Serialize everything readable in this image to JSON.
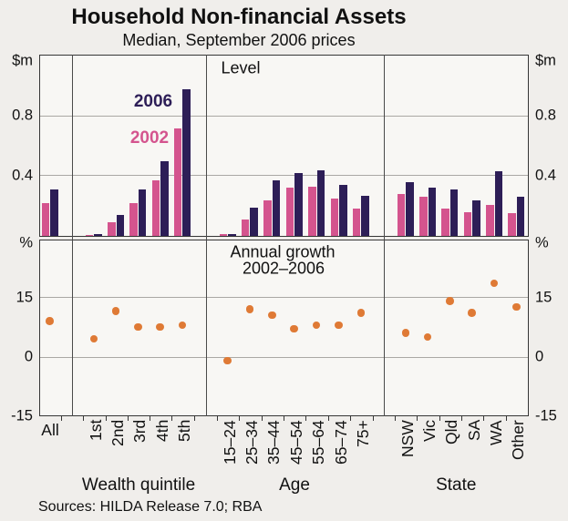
{
  "page": {
    "title": "Household Non-financial Assets",
    "subtitle": "Median, September 2006 prices",
    "footer": "Sources: HILDA Release 7.0; RBA"
  },
  "colors": {
    "bar_2006": "#2d1e57",
    "bar_2002": "#d4548e",
    "growth_dot": "#df7a35",
    "panel_background": "#f8f7f4",
    "gridline": "#aaa8a4"
  },
  "chart_data": [
    {
      "type": "bar",
      "panel_label": "Level",
      "unit_left": "$m",
      "unit_right": "$m",
      "ylim": [
        0,
        1.2
      ],
      "yticks": [
        {
          "v": 0.8,
          "label": "0.8",
          "grid": true
        },
        {
          "v": 0.4,
          "label": "0.4",
          "grid": true
        }
      ],
      "legend": [
        {
          "name": "2006",
          "color": "#2d1e57"
        },
        {
          "name": "2002",
          "color": "#d4548e"
        }
      ],
      "sections": [
        {
          "label": "",
          "categories": [
            "All"
          ]
        },
        {
          "label": "Wealth quintile",
          "categories": [
            "1st",
            "2nd",
            "3rd",
            "4th",
            "5th"
          ]
        },
        {
          "label": "Age",
          "categories": [
            "15–24",
            "25–34",
            "35–44",
            "45–54",
            "55–64",
            "65–74",
            "75+"
          ]
        },
        {
          "label": "State",
          "categories": [
            "NSW",
            "Vic",
            "Qld",
            "SA",
            "WA",
            "Other"
          ]
        }
      ],
      "series": [
        {
          "name": "2002",
          "values": [
            0.22,
            0.005,
            0.09,
            0.22,
            0.37,
            0.72,
            0.01,
            0.11,
            0.24,
            0.32,
            0.33,
            0.25,
            0.18,
            0.28,
            0.26,
            0.18,
            0.16,
            0.21,
            0.15
          ]
        },
        {
          "name": "2006",
          "values": [
            0.31,
            0.01,
            0.14,
            0.31,
            0.5,
            0.98,
            0.01,
            0.19,
            0.37,
            0.42,
            0.44,
            0.34,
            0.27,
            0.36,
            0.32,
            0.31,
            0.24,
            0.43,
            0.26
          ]
        }
      ]
    },
    {
      "type": "scatter",
      "panel_label_line1": "Annual growth",
      "panel_label_line2": "2002–2006",
      "unit_left": "%",
      "unit_right": "%",
      "ylim": [
        -14.55,
        29.3
      ],
      "yticks": [
        {
          "v": 15,
          "label": "15",
          "grid": true
        },
        {
          "v": 0,
          "label": "0",
          "grid": true
        },
        {
          "v": -15,
          "label": "-15",
          "grid": false
        }
      ],
      "series": [
        {
          "name": "Annual growth 2002–2006",
          "values": [
            9,
            4.5,
            11.5,
            7.5,
            7.5,
            8,
            -1,
            12,
            10.5,
            7,
            8,
            8,
            11,
            6,
            5,
            14,
            11,
            18.5,
            12.5
          ]
        }
      ]
    }
  ]
}
